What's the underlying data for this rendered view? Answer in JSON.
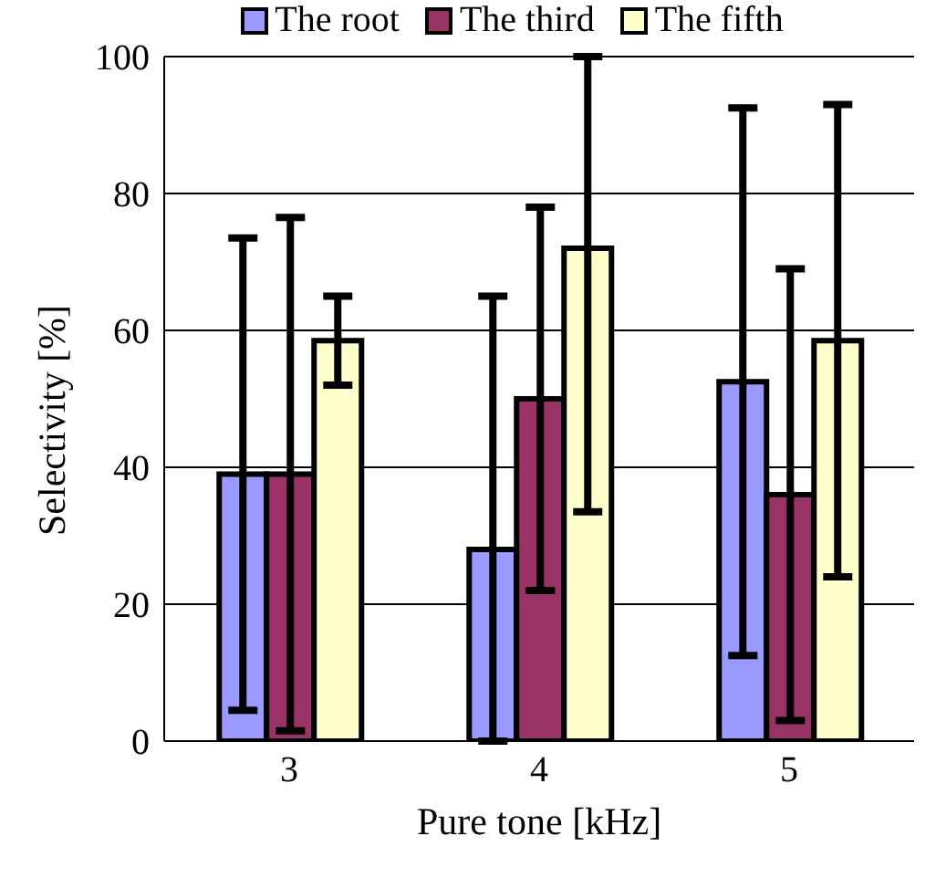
{
  "chart_data": {
    "type": "bar",
    "xlabel": "Pure tone [kHz]",
    "ylabel": "Selectivity [%]",
    "categories": [
      "3",
      "4",
      "5"
    ],
    "series": [
      {
        "name": "The root",
        "color": "#9999ff",
        "values": [
          39,
          28,
          52.5
        ],
        "errors": [
          34.5,
          [
            0,
            65
          ],
          40
        ]
      },
      {
        "name": "The third",
        "color": "#993366",
        "values": [
          39,
          50,
          36
        ],
        "errors": [
          37.5,
          28,
          33
        ]
      },
      {
        "name": "The fifth",
        "color": "#ffffcc",
        "values": [
          58.5,
          72,
          58.5
        ],
        "errors": [
          6.5,
          [
            33.5,
            100
          ],
          34.5
        ]
      }
    ],
    "ylim": [
      0,
      100
    ],
    "yticks": [
      0,
      20,
      40,
      60,
      80,
      100
    ],
    "grid": "y",
    "legend": "top"
  }
}
